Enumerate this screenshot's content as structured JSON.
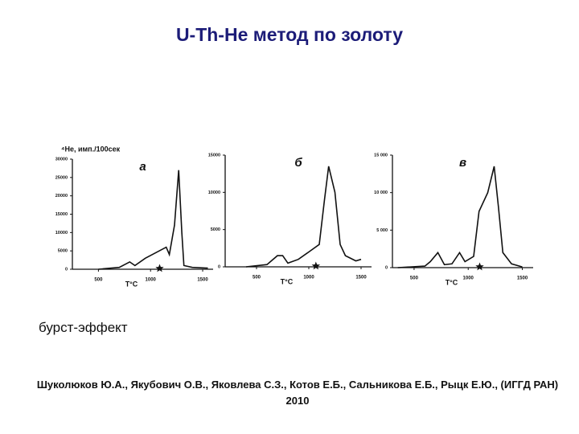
{
  "slide": {
    "title": "U-Th-He метод по золоту",
    "caption": "бурст-эффект",
    "citation": "Шуколюков Ю.А., Якубович О.В., Яковлева С.З., Котов Е.Б., Сальникова Е.Б., Рыцк Е.Ю., (ИГГД РАН) 2010"
  },
  "chart_data": [
    {
      "type": "line",
      "title": "а",
      "y_label": "⁴He, имп./100сек",
      "x_label": "T°C",
      "color": "#111111",
      "x": [
        500,
        700,
        800,
        850,
        950,
        1050,
        1150,
        1180,
        1230,
        1270,
        1300,
        1320,
        1400,
        1550
      ],
      "values": [
        0,
        500,
        2000,
        1000,
        3000,
        4500,
        6000,
        4000,
        12000,
        27000,
        10000,
        1000,
        500,
        300
      ],
      "xlim": [
        250,
        1600
      ],
      "xticks": [
        500,
        1000,
        1500
      ],
      "ylim": [
        0,
        30000
      ],
      "yticks": [
        0,
        5000,
        10000,
        15000,
        20000,
        25000,
        30000
      ]
    },
    {
      "type": "line",
      "title": "б",
      "x_label": "T°C",
      "color": "#111111",
      "x": [
        400,
        600,
        700,
        750,
        800,
        900,
        1000,
        1100,
        1150,
        1190,
        1250,
        1300,
        1350,
        1450,
        1500
      ],
      "values": [
        0,
        300,
        1500,
        1500,
        500,
        1000,
        2000,
        3000,
        9000,
        13500,
        10000,
        3000,
        1500,
        800,
        1000
      ],
      "xlim": [
        200,
        1600
      ],
      "xticks": [
        500,
        1000,
        1500
      ],
      "ylim": [
        0,
        15000
      ],
      "yticks": [
        0,
        5000,
        10000,
        15000
      ]
    },
    {
      "type": "line",
      "title": "в",
      "x_label": "T°C",
      "color": "#111111",
      "x": [
        350,
        600,
        650,
        720,
        780,
        850,
        920,
        970,
        1050,
        1100,
        1180,
        1240,
        1280,
        1320,
        1400,
        1500
      ],
      "values": [
        0,
        200,
        800,
        2000,
        400,
        500,
        2000,
        800,
        1500,
        7500,
        10000,
        13500,
        8000,
        2000,
        500,
        100
      ],
      "xlim": [
        300,
        1600
      ],
      "xticks": [
        500,
        1000,
        1500
      ],
      "ylim": [
        0,
        15000
      ],
      "yticks": [
        0,
        {
          "value": 5000,
          "label": "5 000"
        },
        {
          "value": 10000,
          "label": "10 000"
        },
        {
          "value": 15000,
          "label": "15 000"
        }
      ]
    }
  ]
}
